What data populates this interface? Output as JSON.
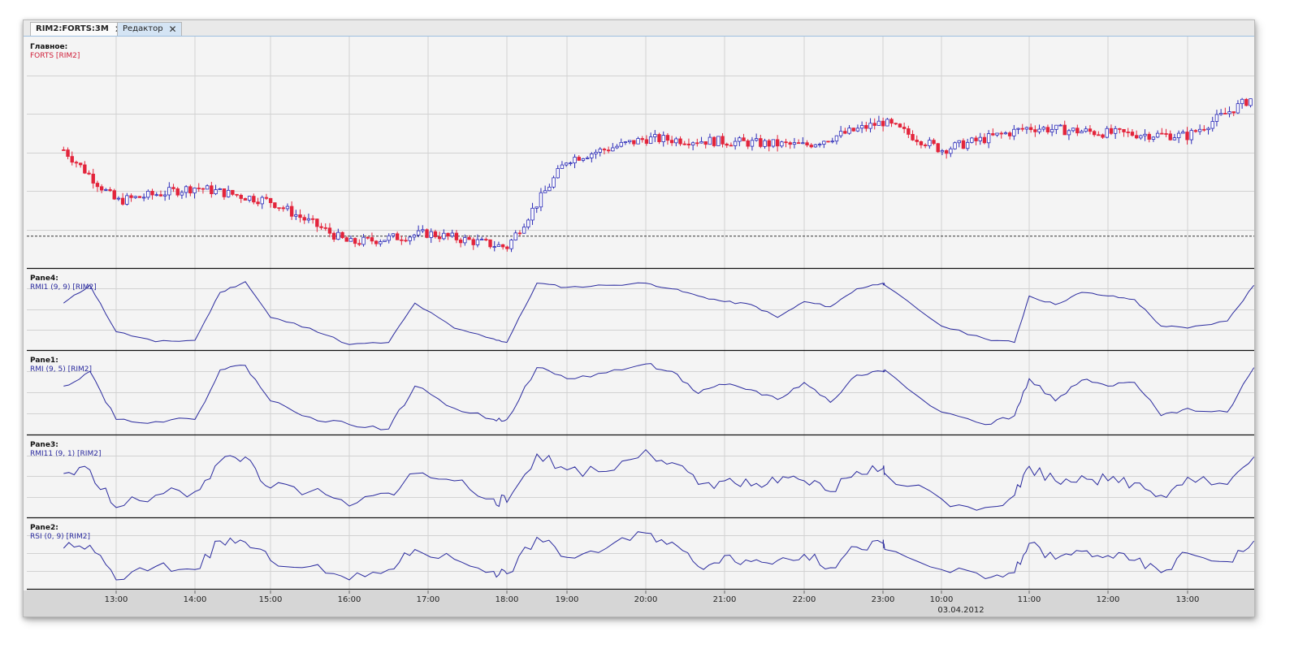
{
  "tabs": [
    {
      "label": "RIM2:FORTS:3M",
      "active": true
    },
    {
      "label": "Редактор",
      "active": false
    }
  ],
  "close_glyph": "✕",
  "colors": {
    "bull_body": "#ffffff",
    "bull_outline": "#2a2ab8",
    "bear_body": "#e3243b",
    "line": "#2a2a9e",
    "grid": "#d2d2d2",
    "background": "#f4f4f4",
    "axis_bg": "#d6d6d6",
    "reference_line": "#333333"
  },
  "time_axis": {
    "ticks": [
      "13:00",
      "14:00",
      "15:00",
      "16:00",
      "17:00",
      "18:00",
      "19:00",
      "20:00",
      "21:00",
      "22:00",
      "23:00",
      "10:00",
      "11:00",
      "12:00",
      "13:00"
    ],
    "date_label": "03.04.2012",
    "date_under_tick": "10:00"
  },
  "panes": [
    {
      "title": "Главное:",
      "subtitle": "FORTS [RIM2]",
      "subtitle_color": "#d0203a",
      "type": "candlestick"
    },
    {
      "title": "Pane4:",
      "subtitle": "RMI1 (9, 9) [RIM2]",
      "subtitle_color": "#2a2a9e",
      "type": "line"
    },
    {
      "title": "Pane1:",
      "subtitle": "RMI (9, 5) [RIM2]",
      "subtitle_color": "#2a2a9e",
      "type": "line"
    },
    {
      "title": "Pane3:",
      "subtitle": "RMI11 (9, 1) [RIM2]",
      "subtitle_color": "#2a2a9e",
      "type": "line"
    },
    {
      "title": "Pane2:",
      "subtitle": "RSI (0, 9) [RIM2]",
      "subtitle_color": "#2a2a9e",
      "type": "line"
    }
  ],
  "chart_data": [
    {
      "type": "candlestick",
      "series_label": "FORTS [RIM2]",
      "x": [
        "12:20",
        "13:00",
        "14:00",
        "15:00",
        "16:00",
        "17:00",
        "18:00",
        "19:00",
        "20:00",
        "21:00",
        "22:00",
        "23:00",
        "10:00",
        "11:00",
        "12:00",
        "13:00",
        "13:50"
      ],
      "close": [
        62,
        25,
        35,
        25,
        -5,
        2,
        -8,
        55,
        70,
        68,
        65,
        82,
        62,
        78,
        74,
        72,
        100
      ],
      "ylim": [
        -20,
        120
      ],
      "reference_line": 0
    },
    {
      "type": "line",
      "series_label": "RMI1 (9, 9) [RIM2]",
      "x": [
        "12:20",
        "12:40",
        "13:00",
        "13:30",
        "14:00",
        "14:20",
        "14:40",
        "15:00",
        "15:30",
        "16:00",
        "16:30",
        "16:50",
        "17:20",
        "17:50",
        "18:00",
        "18:30",
        "19:00",
        "19:30",
        "20:00",
        "20:20",
        "20:40",
        "21:00",
        "21:20",
        "21:40",
        "22:00",
        "22:20",
        "22:40",
        "23:00",
        "23:20",
        "10:00",
        "10:30",
        "10:50",
        "11:00",
        "11:20",
        "11:40",
        "12:00",
        "12:20",
        "12:40",
        "13:00",
        "13:30",
        "13:50"
      ],
      "values": [
        60,
        85,
        20,
        6,
        8,
        75,
        90,
        40,
        25,
        2,
        5,
        60,
        25,
        10,
        5,
        88,
        82,
        85,
        88,
        80,
        70,
        62,
        58,
        40,
        62,
        55,
        80,
        88,
        85,
        28,
        10,
        5,
        70,
        58,
        75,
        70,
        65,
        28,
        25,
        35,
        85
      ],
      "ylim": [
        0,
        100
      ]
    },
    {
      "type": "line",
      "series_label": "RMI (9, 5) [RIM2]",
      "x": [
        "12:20",
        "12:40",
        "13:00",
        "13:30",
        "14:00",
        "14:20",
        "14:40",
        "15:00",
        "15:30",
        "16:00",
        "16:30",
        "16:50",
        "17:20",
        "17:50",
        "18:00",
        "18:30",
        "19:00",
        "19:30",
        "20:00",
        "20:20",
        "20:40",
        "21:00",
        "21:20",
        "21:40",
        "22:00",
        "22:20",
        "22:40",
        "23:00",
        "23:20",
        "10:00",
        "10:30",
        "10:50",
        "11:00",
        "11:20",
        "11:40",
        "12:00",
        "12:20",
        "12:40",
        "13:00",
        "13:30",
        "13:50"
      ],
      "values": [
        60,
        80,
        15,
        12,
        15,
        82,
        88,
        40,
        18,
        8,
        2,
        60,
        30,
        15,
        15,
        85,
        70,
        78,
        90,
        80,
        50,
        62,
        55,
        42,
        65,
        38,
        75,
        80,
        82,
        25,
        8,
        20,
        70,
        40,
        68,
        60,
        65,
        20,
        30,
        25,
        85
      ],
      "ylim": [
        0,
        100
      ]
    },
    {
      "type": "line",
      "series_label": "RMI11 (9, 1) [RIM2]",
      "x": [
        "12:20",
        "12:40",
        "13:00",
        "13:30",
        "14:00",
        "14:20",
        "14:40",
        "15:00",
        "15:30",
        "16:00",
        "16:30",
        "16:50",
        "17:20",
        "17:50",
        "18:00",
        "18:30",
        "19:00",
        "19:30",
        "20:00",
        "20:20",
        "20:40",
        "21:00",
        "21:20",
        "21:40",
        "22:00",
        "22:20",
        "22:40",
        "23:00",
        "23:20",
        "10:00",
        "10:30",
        "10:50",
        "11:00",
        "11:20",
        "11:40",
        "12:00",
        "12:20",
        "12:40",
        "13:00",
        "13:30",
        "13:50"
      ],
      "values": [
        55,
        60,
        8,
        25,
        30,
        72,
        78,
        35,
        30,
        10,
        28,
        55,
        45,
        20,
        15,
        82,
        60,
        58,
        88,
        70,
        40,
        45,
        38,
        42,
        45,
        30,
        58,
        62,
        55,
        20,
        8,
        25,
        65,
        45,
        52,
        45,
        42,
        25,
        50,
        40,
        78
      ],
      "ylim": [
        0,
        100
      ]
    },
    {
      "type": "line",
      "series_label": "RSI (0, 9) [RIM2]",
      "x": [
        "12:20",
        "12:40",
        "13:00",
        "13:30",
        "14:00",
        "14:20",
        "14:40",
        "15:00",
        "15:30",
        "16:00",
        "16:30",
        "16:50",
        "17:20",
        "17:50",
        "18:00",
        "18:30",
        "19:00",
        "19:30",
        "20:00",
        "20:20",
        "20:40",
        "21:00",
        "21:20",
        "21:40",
        "22:00",
        "22:20",
        "22:40",
        "23:00",
        "23:20",
        "10:00",
        "10:30",
        "10:50",
        "11:00",
        "11:20",
        "11:40",
        "12:00",
        "12:20",
        "12:40",
        "13:00",
        "13:30",
        "13:50"
      ],
      "values": [
        60,
        65,
        8,
        30,
        25,
        72,
        70,
        40,
        30,
        8,
        25,
        58,
        42,
        22,
        18,
        78,
        45,
        60,
        85,
        70,
        30,
        48,
        38,
        40,
        50,
        28,
        62,
        68,
        58,
        25,
        10,
        20,
        68,
        42,
        55,
        48,
        40,
        20,
        52,
        38,
        72
      ],
      "ylim": [
        0,
        100
      ]
    }
  ]
}
